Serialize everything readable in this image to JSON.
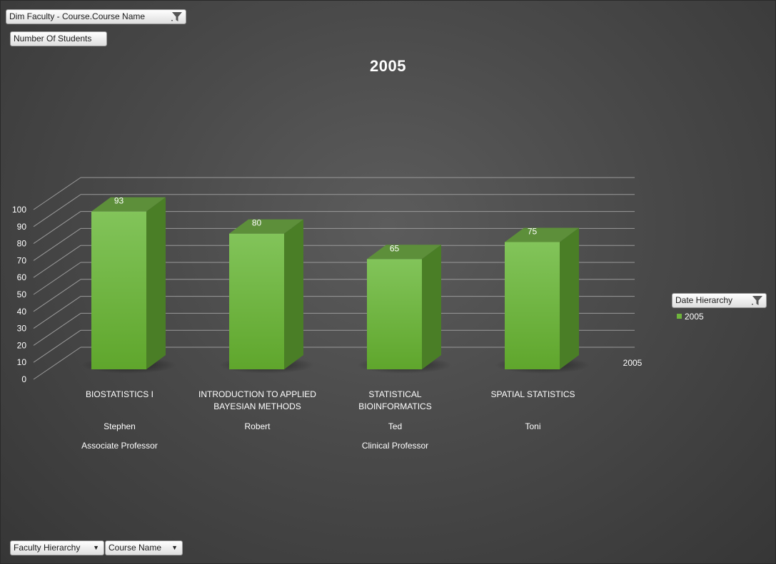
{
  "top_filter": {
    "label": "Dim Faculty - Course.Course Name",
    "icon": "filter-icon"
  },
  "value_field": {
    "label": "Number Of Students"
  },
  "legend_filter": {
    "label": "Date Hierarchy",
    "icon": "filter-icon"
  },
  "bottom_fields": [
    {
      "label": "Faculty Hierarchy",
      "icon": "chevron-down-icon"
    },
    {
      "label": "Course Name",
      "icon": "chevron-down-icon"
    }
  ],
  "colors": {
    "bar_front": "#6fb53c",
    "bar_side": "#4a7e26",
    "bar_top": "#5d8f3a",
    "gridline": "#9a9a9a",
    "text": "#ffffff"
  },
  "chart_data": {
    "type": "bar",
    "title": "2005",
    "categories": [
      {
        "course": [
          "BIOSTATISTICS I"
        ],
        "faculty": "Stephen",
        "title": "Associate Professor"
      },
      {
        "course": [
          "INTRODUCTION TO APPLIED",
          "BAYESIAN METHODS"
        ],
        "faculty": "Robert",
        "title": ""
      },
      {
        "course": [
          "STATISTICAL",
          "BIOINFORMATICS"
        ],
        "faculty": "Ted",
        "title": "Clinical Professor"
      },
      {
        "course": [
          "SPATIAL STATISTICS"
        ],
        "faculty": "Toni",
        "title": ""
      }
    ],
    "series": [
      {
        "name": "2005",
        "values": [
          93,
          80,
          65,
          75
        ]
      }
    ],
    "ylim": [
      0,
      100
    ],
    "yticks": [
      0,
      10,
      20,
      30,
      40,
      50,
      60,
      70,
      80,
      90,
      100
    ],
    "depth_label": "2005",
    "legend": {
      "position": "right",
      "entries": [
        "2005"
      ]
    },
    "grid": true
  }
}
